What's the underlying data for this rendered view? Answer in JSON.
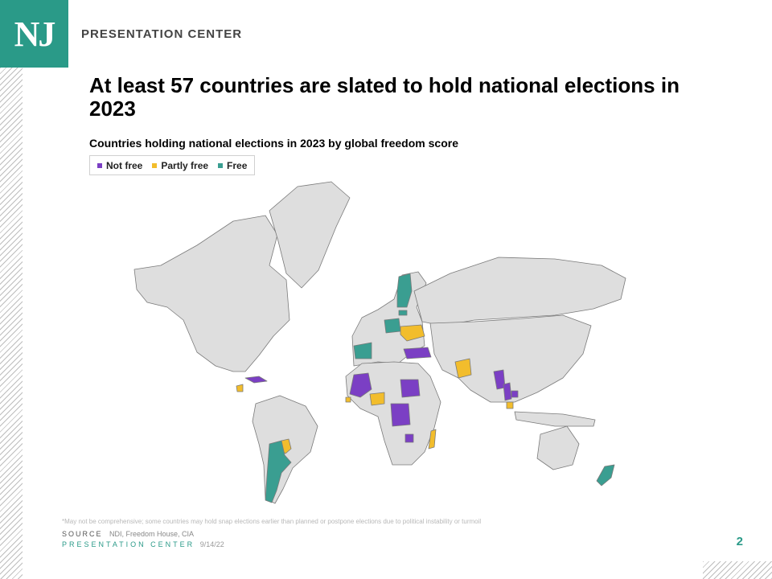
{
  "header": {
    "logo_text": "NJ",
    "label": "PRESENTATION CENTER"
  },
  "title": "At least 57 countries are slated to hold national elections in 2023",
  "subtitle": "Countries holding national elections in 2023 by global freedom score",
  "legend": [
    {
      "label": "Not free",
      "color": "#7b3fc4"
    },
    {
      "label": "Partly free",
      "color": "#f2bd2c"
    },
    {
      "label": "Free",
      "color": "#3a9e91"
    }
  ],
  "map": {
    "base_color": "#dedede",
    "border_color": "#7a7a7a",
    "regions": [
      {
        "name": "North America",
        "status": "base"
      },
      {
        "name": "Greenland",
        "status": "base"
      },
      {
        "name": "Cuba",
        "status": "not_free"
      },
      {
        "name": "Guatemala",
        "status": "partly_free"
      },
      {
        "name": "South America",
        "status": "base"
      },
      {
        "name": "Paraguay",
        "status": "partly_free"
      },
      {
        "name": "Argentina",
        "status": "free"
      },
      {
        "name": "Europe",
        "status": "base"
      },
      {
        "name": "Spain",
        "status": "free"
      },
      {
        "name": "Finland",
        "status": "free"
      },
      {
        "name": "Estonia",
        "status": "free"
      },
      {
        "name": "Poland",
        "status": "free"
      },
      {
        "name": "Ukraine",
        "status": "partly_free"
      },
      {
        "name": "Turkey",
        "status": "not_free"
      },
      {
        "name": "Russia",
        "status": "base"
      },
      {
        "name": "Africa",
        "status": "base"
      },
      {
        "name": "Mali",
        "status": "not_free"
      },
      {
        "name": "Sierra Leone",
        "status": "partly_free"
      },
      {
        "name": "Nigeria",
        "status": "partly_free"
      },
      {
        "name": "Sudan",
        "status": "not_free"
      },
      {
        "name": "DR Congo",
        "status": "not_free"
      },
      {
        "name": "Zimbabwe",
        "status": "not_free"
      },
      {
        "name": "Madagascar",
        "status": "partly_free"
      },
      {
        "name": "Pakistan",
        "status": "partly_free"
      },
      {
        "name": "Asia",
        "status": "base"
      },
      {
        "name": "Myanmar",
        "status": "not_free"
      },
      {
        "name": "Thailand",
        "status": "not_free"
      },
      {
        "name": "Cambodia",
        "status": "not_free"
      },
      {
        "name": "Malaysia",
        "status": "partly_free"
      },
      {
        "name": "Indonesia",
        "status": "base"
      },
      {
        "name": "Australia",
        "status": "base"
      },
      {
        "name": "New Zealand",
        "status": "free"
      }
    ]
  },
  "footnote": "*May not be comprehensive; some countries may hold snap elections earlier than planned or postpone elections due to political instability or turmoil",
  "source": {
    "label": "SOURCE",
    "text": "NDI, Freedom House, CIA"
  },
  "footer": {
    "label": "PRESENTATION CENTER",
    "date": "9/14/22"
  },
  "page_number": "2"
}
